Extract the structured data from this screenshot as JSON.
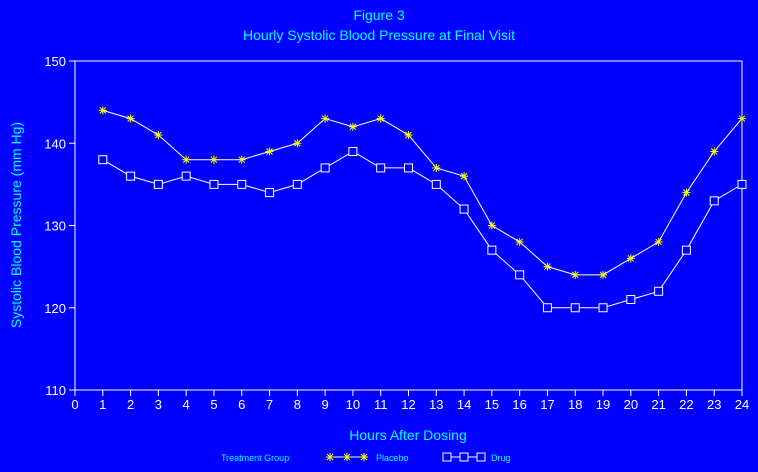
{
  "colors": {
    "background": "#0000FF",
    "title": "#00FFFF",
    "axis": "#FFFFFF",
    "placebo": "#FFFF00",
    "drug": "#FFFFFF",
    "line": "#FFFFFF"
  },
  "chart_data": {
    "type": "line",
    "title": "Figure 3",
    "subtitle": "Hourly Systolic Blood Pressure at Final Visit",
    "xlabel": "Hours After Dosing",
    "ylabel": "Systolic Blood Pressure (mm Hg)",
    "xlim": [
      0,
      24
    ],
    "ylim": [
      110,
      150
    ],
    "xticks": [
      0,
      1,
      2,
      3,
      4,
      5,
      6,
      7,
      8,
      9,
      10,
      11,
      12,
      13,
      14,
      15,
      16,
      17,
      18,
      19,
      20,
      21,
      22,
      23,
      24
    ],
    "yticks": [
      110,
      120,
      130,
      140,
      150
    ],
    "grid": false,
    "legend_position": "bottom",
    "legend_title": "Treatment Group",
    "x": [
      1,
      2,
      3,
      4,
      5,
      6,
      7,
      8,
      9,
      10,
      11,
      12,
      13,
      14,
      15,
      16,
      17,
      18,
      19,
      20,
      21,
      22,
      23,
      24
    ],
    "series": [
      {
        "name": "Placebo",
        "marker": "star-icon",
        "values": [
          144,
          143,
          141,
          138,
          138,
          138,
          139,
          140,
          143,
          142,
          143,
          141,
          137,
          136,
          130,
          128,
          125,
          124,
          124,
          126,
          128,
          134,
          139,
          143
        ]
      },
      {
        "name": "Drug",
        "marker": "square-icon",
        "values": [
          138,
          136,
          135,
          136,
          135,
          135,
          134,
          135,
          137,
          139,
          137,
          137,
          135,
          132,
          127,
          124,
          120,
          120,
          120,
          121,
          122,
          127,
          133,
          135
        ]
      }
    ]
  }
}
